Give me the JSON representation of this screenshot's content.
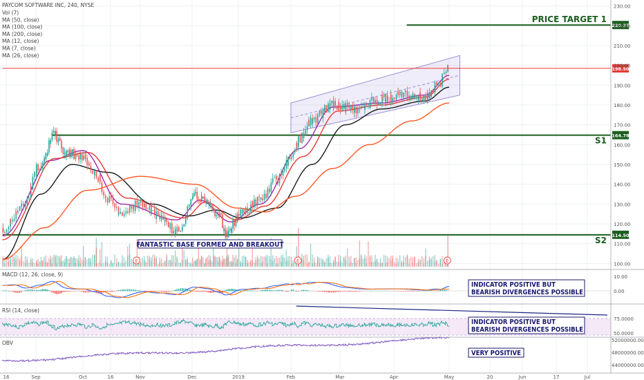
{
  "chart_data": {
    "type": "candlestick",
    "title": "PAYCOM SOFTWARE INC, 240, NYSE",
    "x_ticks": [
      "16",
      "Sep",
      "Oct",
      "16",
      "Nov",
      "Dec",
      "2019",
      "Feb",
      "Mar",
      "Apr",
      "May",
      "20",
      "Jun",
      "17",
      "Jul"
    ],
    "main_pane": {
      "legend": [
        "Vol (7)",
        "MA (50, close)",
        "MA (100, close)",
        "MA (200, close)",
        "MA (12, close)",
        "MA (7, close)",
        "MA (26, close)"
      ],
      "y_ticks": [
        "230.00",
        "220.00",
        "210.00",
        "200.00",
        "190.00",
        "180.00",
        "170.00",
        "160.00",
        "150.00",
        "140.00",
        "130.00",
        "120.00",
        "110.00",
        "100.00"
      ],
      "ylim": [
        97,
        233
      ],
      "price_path": [
        {
          "d": "2018-08-14",
          "v": 116
        },
        {
          "d": "2018-08-24",
          "v": 128
        },
        {
          "d": "2018-09-04",
          "v": 150
        },
        {
          "d": "2018-09-13",
          "v": 165
        },
        {
          "d": "2018-09-20",
          "v": 156
        },
        {
          "d": "2018-10-01",
          "v": 154
        },
        {
          "d": "2018-10-08",
          "v": 145
        },
        {
          "d": "2018-10-15",
          "v": 132
        },
        {
          "d": "2018-10-22",
          "v": 126
        },
        {
          "d": "2018-11-01",
          "v": 130
        },
        {
          "d": "2018-11-12",
          "v": 124
        },
        {
          "d": "2018-11-22",
          "v": 116
        },
        {
          "d": "2018-12-03",
          "v": 134
        },
        {
          "d": "2018-12-12",
          "v": 132
        },
        {
          "d": "2018-12-19",
          "v": 124
        },
        {
          "d": "2018-12-24",
          "v": 115
        },
        {
          "d": "2019-01-04",
          "v": 127
        },
        {
          "d": "2019-01-14",
          "v": 132
        },
        {
          "d": "2019-01-24",
          "v": 142
        },
        {
          "d": "2019-02-01",
          "v": 152
        },
        {
          "d": "2019-02-06",
          "v": 163
        },
        {
          "d": "2019-02-13",
          "v": 172
        },
        {
          "d": "2019-02-25",
          "v": 180
        },
        {
          "d": "2019-03-11",
          "v": 178
        },
        {
          "d": "2019-03-25",
          "v": 183
        },
        {
          "d": "2019-04-08",
          "v": 185
        },
        {
          "d": "2019-04-18",
          "v": 184
        },
        {
          "d": "2019-04-26",
          "v": 191
        },
        {
          "d": "2019-05-01",
          "v": 200
        }
      ],
      "moving_averages": [
        {
          "name": "MA (7, close)",
          "color": "#9c27b0",
          "points": [
            {
              "d": "2018-08-14",
              "v": 114
            },
            {
              "d": "2018-09-10",
              "v": 152
            },
            {
              "d": "2018-10-01",
              "v": 157
            },
            {
              "d": "2018-10-22",
              "v": 130
            },
            {
              "d": "2018-11-22",
              "v": 122
            },
            {
              "d": "2018-12-06",
              "v": 132
            },
            {
              "d": "2018-12-27",
              "v": 121
            },
            {
              "d": "2019-01-14",
              "v": 130
            },
            {
              "d": "2019-02-06",
              "v": 158
            },
            {
              "d": "2019-02-25",
              "v": 179
            },
            {
              "d": "2019-03-25",
              "v": 181
            },
            {
              "d": "2019-04-18",
              "v": 185
            },
            {
              "d": "2019-05-01",
              "v": 195
            }
          ]
        },
        {
          "name": "MA (12, close)",
          "color": "#e53935",
          "points": [
            {
              "d": "2018-08-14",
              "v": 112
            },
            {
              "d": "2018-09-13",
              "v": 153
            },
            {
              "d": "2018-10-04",
              "v": 156
            },
            {
              "d": "2018-10-25",
              "v": 133
            },
            {
              "d": "2018-11-26",
              "v": 123
            },
            {
              "d": "2018-12-10",
              "v": 131
            },
            {
              "d": "2018-12-31",
              "v": 122
            },
            {
              "d": "2019-01-17",
              "v": 129
            },
            {
              "d": "2019-02-08",
              "v": 154
            },
            {
              "d": "2019-02-28",
              "v": 177
            },
            {
              "d": "2019-03-25",
              "v": 180
            },
            {
              "d": "2019-04-18",
              "v": 184
            },
            {
              "d": "2019-05-01",
              "v": 193
            }
          ]
        },
        {
          "name": "MA (26, close)",
          "color": "#1a1a1a",
          "points": [
            {
              "d": "2018-08-14",
              "v": 102
            },
            {
              "d": "2018-09-04",
              "v": 135
            },
            {
              "d": "2018-09-24",
              "v": 150
            },
            {
              "d": "2018-10-15",
              "v": 146
            },
            {
              "d": "2018-11-08",
              "v": 130
            },
            {
              "d": "2018-11-29",
              "v": 124
            },
            {
              "d": "2018-12-17",
              "v": 127
            },
            {
              "d": "2019-01-03",
              "v": 123
            },
            {
              "d": "2019-01-24",
              "v": 128
            },
            {
              "d": "2019-02-13",
              "v": 150
            },
            {
              "d": "2019-03-04",
              "v": 170
            },
            {
              "d": "2019-03-25",
              "v": 178
            },
            {
              "d": "2019-04-18",
              "v": 182
            },
            {
              "d": "2019-05-01",
              "v": 189
            }
          ]
        },
        {
          "name": "MA (200, close)",
          "color": "#ff5722",
          "points": [
            {
              "d": "2018-08-14",
              "v": 102
            },
            {
              "d": "2018-09-06",
              "v": 118
            },
            {
              "d": "2018-10-04",
              "v": 137
            },
            {
              "d": "2018-11-01",
              "v": 144
            },
            {
              "d": "2018-12-03",
              "v": 140
            },
            {
              "d": "2018-12-31",
              "v": 128
            },
            {
              "d": "2019-01-17",
              "v": 126
            },
            {
              "d": "2019-02-04",
              "v": 134
            },
            {
              "d": "2019-02-25",
              "v": 148
            },
            {
              "d": "2019-03-18",
              "v": 160
            },
            {
              "d": "2019-04-11",
              "v": 172
            },
            {
              "d": "2019-05-01",
              "v": 181
            }
          ]
        }
      ],
      "channel": {
        "start": "2019-02-01",
        "end": "2019-05-06",
        "upper": [
          181,
          205
        ],
        "lower": [
          166,
          185
        ],
        "mid_end": 195
      },
      "horizontal_levels": [
        {
          "label": "PRICE TARGET 1",
          "value": 220.37,
          "tag": "220.37",
          "color": "#1b5e20",
          "from": "2019-04-08"
        },
        {
          "label": "",
          "value": 198.5,
          "tag": "198.50",
          "color": "#e53935",
          "from": "2018-08-14"
        },
        {
          "label": "S1",
          "value": 164.78,
          "tag": "164.78",
          "color": "#1b5e20",
          "from": "2018-09-11"
        },
        {
          "label": "S2",
          "value": 114.5,
          "tag": "114.50",
          "color": "#1b5e20",
          "from": "2018-08-14"
        }
      ],
      "earnings_markers": [
        {
          "d": "2018-10-30",
          "label": "E"
        },
        {
          "d": "2019-02-05",
          "label": "E"
        },
        {
          "d": "2019-04-30",
          "label": "E"
        }
      ],
      "annotation": "FANTASTIC BASE FORMED AND BREAKOUT"
    },
    "macd_pane": {
      "title": "MACD (12, 26, close, 9)",
      "y_ticks": [
        "10.00",
        "0.00"
      ],
      "annotation": [
        "INDICATOR POSITIVE BUT",
        "BEARISH DIVERGENCES POSSIBLE"
      ]
    },
    "rsi_pane": {
      "title": "RSI (14, close)",
      "y_ticks": [
        "75.0000",
        "50.0000"
      ],
      "annotation": [
        "INDICATOR POSITIVE BUT",
        "BEARISH DIVERGENCES POSSIBLE"
      ]
    },
    "obv_pane": {
      "title": "OBV",
      "y_ticks": [
        "52000000.0000",
        "48000000.0000",
        "44000000.0000"
      ],
      "annotation": "VERY POSITIVE"
    }
  }
}
